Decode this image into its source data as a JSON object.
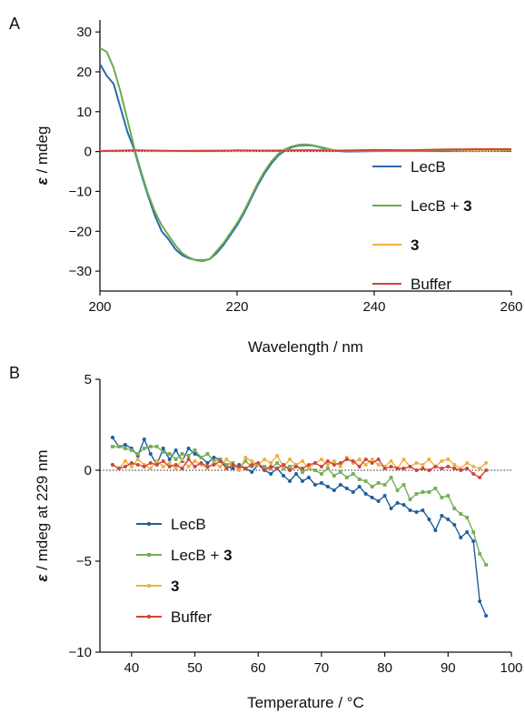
{
  "chart_data": [
    {
      "panel": "A",
      "type": "line",
      "xlabel": "Wavelength / nm",
      "ylabel": {
        "symbol": "ε",
        "rest": " / mdeg"
      },
      "xlim": [
        200,
        260
      ],
      "ylim": [
        -35,
        33
      ],
      "xticks": [
        200,
        220,
        240,
        260
      ],
      "yticks": [
        -30,
        -20,
        -10,
        0,
        10,
        20,
        30
      ],
      "zero_line": "dotted",
      "legend_position": "right",
      "series": [
        {
          "name": "LecB",
          "name_bold_suffix": "",
          "color": "#2a6aa8",
          "x": [
            200,
            201,
            202,
            203,
            204,
            205,
            206,
            207,
            208,
            209,
            210,
            211,
            212,
            213,
            214,
            215,
            216,
            217,
            218,
            219,
            220,
            221,
            222,
            223,
            224,
            225,
            226,
            227,
            228,
            229,
            230,
            231,
            232,
            233,
            234,
            235,
            236,
            240,
            245,
            250,
            255,
            260
          ],
          "y": [
            22,
            19,
            17,
            11,
            5,
            0.5,
            -5.5,
            -11,
            -16,
            -20,
            -22,
            -24.5,
            -26,
            -26.8,
            -27.2,
            -27.3,
            -27,
            -25.5,
            -23.5,
            -21,
            -18.5,
            -15.5,
            -12,
            -8.5,
            -5.5,
            -3,
            -1,
            0.3,
            1.1,
            1.5,
            1.6,
            1.5,
            1.1,
            0.6,
            0.3,
            0.1,
            0,
            0.1,
            0.2,
            0.1,
            0.3,
            0.2
          ]
        },
        {
          "name": "LecB + ",
          "name_bold_suffix": "3",
          "color": "#6aab4f",
          "x": [
            200,
            201,
            202,
            203,
            204,
            205,
            206,
            207,
            208,
            209,
            210,
            211,
            212,
            213,
            214,
            215,
            216,
            217,
            218,
            219,
            220,
            221,
            222,
            223,
            224,
            225,
            226,
            227,
            228,
            229,
            230,
            231,
            232,
            233,
            234,
            235,
            236,
            240,
            245,
            250,
            255,
            260
          ],
          "y": [
            26,
            25,
            21,
            15,
            8,
            1,
            -5,
            -10.5,
            -15,
            -18.5,
            -21,
            -23.5,
            -25.5,
            -26.6,
            -27.3,
            -27.5,
            -27,
            -25,
            -23,
            -20.5,
            -18,
            -15,
            -11.5,
            -8,
            -5,
            -2.5,
            -0.6,
            0.6,
            1.3,
            1.7,
            1.8,
            1.6,
            1.2,
            0.8,
            0.4,
            0.2,
            0.1,
            0.2,
            0.1,
            0.3,
            0.2,
            0.4
          ]
        },
        {
          "name": "",
          "name_bold_suffix": "3",
          "color": "#f2b240",
          "x": [
            200,
            205,
            210,
            215,
            220,
            225,
            230,
            235,
            240,
            245,
            250,
            255,
            260
          ],
          "y": [
            0.2,
            0.3,
            0.1,
            0.3,
            0.2,
            0.3,
            0.4,
            0.3,
            0.4,
            0.3,
            0.5,
            0.4,
            0.5
          ]
        },
        {
          "name": "Buffer",
          "name_bold_suffix": "",
          "color": "#d2433a",
          "x": [
            200,
            205,
            210,
            215,
            220,
            225,
            230,
            235,
            240,
            245,
            250,
            255,
            260
          ],
          "y": [
            0.1,
            0.3,
            0.2,
            0.1,
            0.3,
            0.2,
            0.3,
            0.2,
            0.4,
            0.3,
            0.5,
            0.6,
            0.6
          ]
        }
      ]
    },
    {
      "panel": "B",
      "type": "line",
      "markers": true,
      "xlabel": "Temperature / °C",
      "ylabel": {
        "symbol": "ε",
        "rest": " / mdeg at 229 nm"
      },
      "xlim": [
        35,
        100
      ],
      "ylim": [
        -10,
        5
      ],
      "xticks": [
        40,
        50,
        60,
        70,
        80,
        90,
        100
      ],
      "yticks": [
        -10,
        -5,
        0,
        5
      ],
      "zero_line": "dotted",
      "legend_position": "left",
      "series": [
        {
          "name": "LecB",
          "name_bold_suffix": "",
          "color": "#1f5f9c",
          "marker": "circle",
          "x": [
            37,
            38,
            39,
            40,
            41,
            42,
            43,
            44,
            45,
            46,
            47,
            48,
            49,
            50,
            51,
            52,
            53,
            54,
            55,
            56,
            57,
            58,
            59,
            60,
            61,
            62,
            63,
            64,
            65,
            66,
            67,
            68,
            69,
            70,
            71,
            72,
            73,
            74,
            75,
            76,
            77,
            78,
            79,
            80,
            81,
            82,
            83,
            84,
            85,
            86,
            87,
            88,
            89,
            90,
            91,
            92,
            93,
            94,
            95,
            96
          ],
          "y": [
            1.8,
            1.3,
            1.4,
            1.2,
            0.8,
            1.7,
            0.9,
            0.3,
            1.2,
            0.6,
            1.1,
            0.5,
            1.2,
            0.9,
            0.7,
            0.4,
            0.7,
            0.6,
            0.2,
            0.1,
            0.3,
            0.1,
            -0.1,
            0.3,
            0,
            -0.2,
            0.1,
            -0.3,
            -0.6,
            -0.2,
            -0.6,
            -0.4,
            -0.8,
            -0.7,
            -0.9,
            -1.1,
            -0.8,
            -1.0,
            -1.2,
            -0.9,
            -1.3,
            -1.5,
            -1.7,
            -1.4,
            -2.1,
            -1.8,
            -1.9,
            -2.2,
            -2.3,
            -2.2,
            -2.7,
            -3.3,
            -2.5,
            -2.7,
            -3.0,
            -3.7,
            -3.4,
            -3.9,
            -7.2,
            -8.0
          ]
        },
        {
          "name": "LecB + ",
          "name_bold_suffix": "3",
          "color": "#74ae56",
          "marker": "square",
          "x": [
            37,
            38,
            39,
            40,
            41,
            42,
            43,
            44,
            45,
            46,
            47,
            48,
            49,
            50,
            51,
            52,
            53,
            54,
            55,
            56,
            57,
            58,
            59,
            60,
            61,
            62,
            63,
            64,
            65,
            66,
            67,
            68,
            69,
            70,
            71,
            72,
            73,
            74,
            75,
            76,
            77,
            78,
            79,
            80,
            81,
            82,
            83,
            84,
            85,
            86,
            87,
            88,
            89,
            90,
            91,
            92,
            93,
            94,
            95,
            96
          ],
          "y": [
            1.3,
            1.3,
            1.2,
            1.1,
            0.9,
            1.2,
            1.3,
            1.3,
            1.0,
            0.9,
            0.6,
            0.9,
            0.8,
            1.1,
            0.7,
            0.9,
            0.5,
            0.6,
            0.3,
            0.4,
            0.1,
            0.5,
            0.2,
            0.3,
            0.2,
            0.1,
            0.4,
            0.1,
            0.2,
            0.3,
            -0.1,
            0.1,
            0.0,
            -0.2,
            0.1,
            -0.3,
            -0.1,
            -0.4,
            -0.2,
            -0.5,
            -0.6,
            -0.9,
            -0.7,
            -0.8,
            -0.4,
            -1.1,
            -0.8,
            -1.6,
            -1.3,
            -1.2,
            -1.2,
            -1.0,
            -1.5,
            -1.4,
            -2.1,
            -2.4,
            -2.6,
            -3.4,
            -4.6,
            -5.2
          ]
        },
        {
          "name": "",
          "name_bold_suffix": "3",
          "color": "#f0ae45",
          "marker": "circle",
          "x": [
            37,
            38,
            39,
            40,
            41,
            42,
            43,
            44,
            45,
            46,
            47,
            48,
            49,
            50,
            51,
            52,
            53,
            54,
            55,
            56,
            57,
            58,
            59,
            60,
            61,
            62,
            63,
            64,
            65,
            66,
            67,
            68,
            69,
            70,
            71,
            72,
            73,
            74,
            75,
            76,
            77,
            78,
            79,
            80,
            81,
            82,
            83,
            84,
            85,
            86,
            87,
            88,
            89,
            90,
            91,
            92,
            93,
            94,
            95,
            96
          ],
          "y": [
            0.3,
            0.1,
            0.5,
            0.2,
            0.6,
            0.3,
            0.1,
            0.5,
            0.2,
            0.4,
            0.1,
            0.6,
            0.2,
            0.5,
            0.3,
            0.1,
            0.4,
            0.2,
            0.6,
            0.3,
            0.0,
            0.7,
            0.5,
            0.3,
            0.6,
            0.4,
            0.8,
            0.2,
            0.6,
            0.3,
            0.5,
            0.1,
            0.4,
            0.6,
            0.3,
            0.5,
            0.2,
            0.7,
            0.4,
            0.6,
            0.3,
            0.6,
            0.3,
            0.2,
            0.5,
            0.1,
            0.6,
            0.2,
            0.4,
            0.3,
            0.6,
            0.2,
            0.5,
            0.6,
            0.3,
            0.1,
            0.4,
            0.2,
            0.1,
            0.4
          ]
        },
        {
          "name": "Buffer",
          "name_bold_suffix": "",
          "color": "#d1453a",
          "marker": "circle",
          "x": [
            37,
            38,
            39,
            40,
            41,
            42,
            43,
            44,
            45,
            46,
            47,
            48,
            49,
            50,
            51,
            52,
            53,
            54,
            55,
            56,
            57,
            58,
            59,
            60,
            61,
            62,
            63,
            64,
            65,
            66,
            67,
            68,
            69,
            70,
            71,
            72,
            73,
            74,
            75,
            76,
            77,
            78,
            79,
            80,
            81,
            82,
            83,
            84,
            85,
            86,
            87,
            88,
            89,
            90,
            91,
            92,
            93,
            94,
            95,
            96
          ],
          "y": [
            0.3,
            0.1,
            0.2,
            0.4,
            0.3,
            0.2,
            0.4,
            0.3,
            0.5,
            0.2,
            0.3,
            0.1,
            0.6,
            0.2,
            0.4,
            0.2,
            0.3,
            0.5,
            0.1,
            0.3,
            0.2,
            0.1,
            0.3,
            0.4,
            0.0,
            0.2,
            0.1,
            0.3,
            0.0,
            0.2,
            0.1,
            0.3,
            0.4,
            0.2,
            0.5,
            0.3,
            0.4,
            0.6,
            0.5,
            0.2,
            0.6,
            0.4,
            0.6,
            0.1,
            0.2,
            0.1,
            0.1,
            0.2,
            0.0,
            0.1,
            0.0,
            0.2,
            0.1,
            0.2,
            0.1,
            0.0,
            0.1,
            -0.2,
            -0.4,
            0.0
          ]
        }
      ]
    }
  ]
}
